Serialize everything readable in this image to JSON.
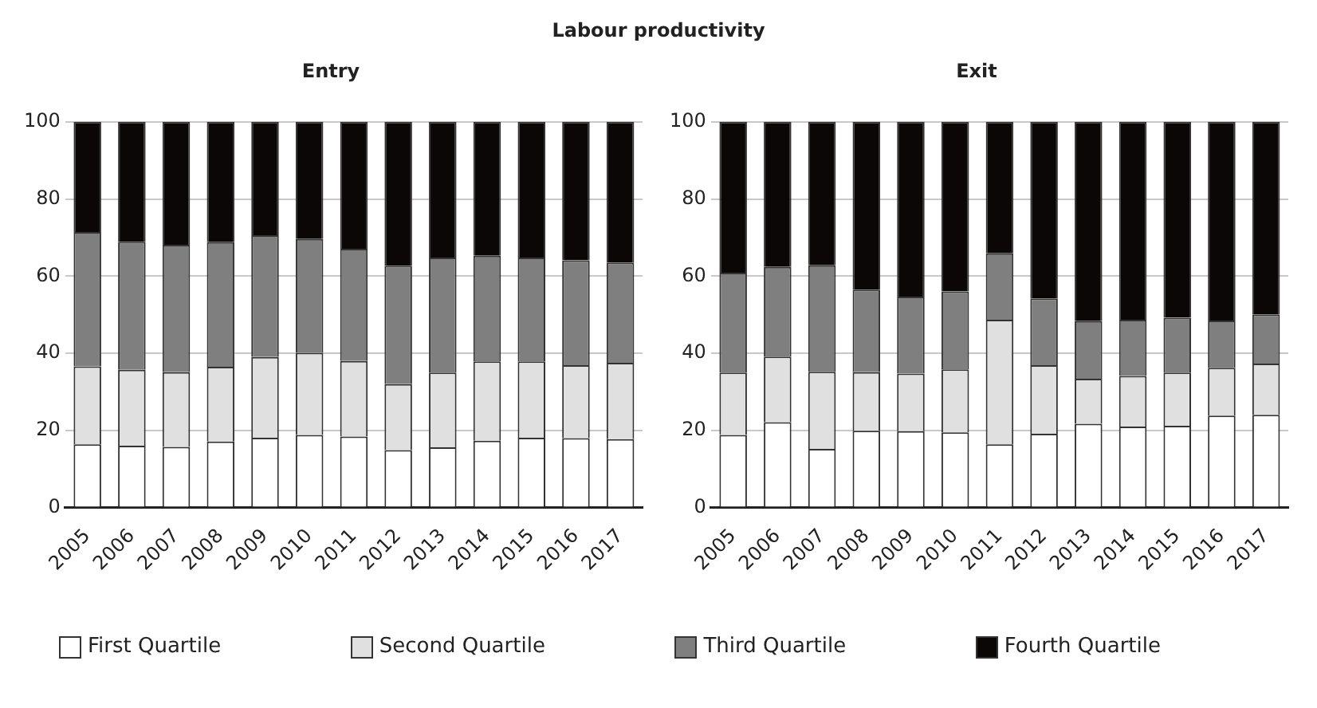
{
  "chart_data": [
    {
      "type": "bar",
      "title": "Entry",
      "annotations": [
        "Labour productivity"
      ],
      "stacked": true,
      "categories": [
        "2005",
        "2006",
        "2007",
        "2008",
        "2009",
        "2010",
        "2011",
        "2012",
        "2013",
        "2014",
        "2015",
        "2016",
        "2017"
      ],
      "series": [
        {
          "name": "First Quartile",
          "color": "#ffffff",
          "values": [
            16.4,
            16,
            15.7,
            17.1,
            18.1,
            18.8,
            18.4,
            14.9,
            15.6,
            17.3,
            18.1,
            18,
            17.7
          ]
        },
        {
          "name": "Second Quartile",
          "color": "#e0e0e0",
          "values": [
            20.2,
            19.7,
            19.4,
            19.4,
            20.9,
            21.3,
            19.6,
            17.1,
            19.4,
            20.6,
            19.8,
            18.9,
            19.8
          ]
        },
        {
          "name": "Third Quartile",
          "color": "#7f7f7f",
          "values": [
            34.8,
            33.2,
            33,
            32.3,
            31.6,
            29.5,
            29.1,
            30.7,
            29.8,
            27.4,
            26.9,
            27.2,
            26
          ]
        },
        {
          "name": "Fourth Quartile",
          "color": "#0a0706",
          "values": [
            28.6,
            31.1,
            31.9,
            31.2,
            29.4,
            30.4,
            32.9,
            37.3,
            35.2,
            34.7,
            35.2,
            35.9,
            36.5
          ]
        }
      ],
      "ylim": [
        0,
        100
      ],
      "yticks": [
        0,
        20,
        40,
        60,
        80,
        100
      ],
      "grid": "y",
      "legend": "bottom"
    },
    {
      "type": "bar",
      "title": "Exit",
      "stacked": true,
      "categories": [
        "2005",
        "2006",
        "2007",
        "2008",
        "2009",
        "2010",
        "2011",
        "2012",
        "2013",
        "2014",
        "2015",
        "2016",
        "2017"
      ],
      "series": [
        {
          "color": "#ffffff",
          "values": [
            18.8,
            22.1,
            15.2,
            19.9,
            19.8,
            19.5,
            16.4,
            19.1,
            21.7,
            21,
            21.2,
            23.8,
            24
          ]
        },
        {
          "color": "#e0e0e0",
          "values": [
            16.2,
            17,
            20,
            15.2,
            14.9,
            16.3,
            32.3,
            17.8,
            11.7,
            13.1,
            13.8,
            12.4,
            13.3
          ]
        },
        {
          "color": "#7f7f7f",
          "values": [
            25.9,
            23.3,
            27.6,
            21.4,
            20,
            20.2,
            17.2,
            17.3,
            14.9,
            14.6,
            14.2,
            12.3,
            12.8
          ]
        },
        {
          "color": "#0a0706",
          "values": [
            39.1,
            37.6,
            37.2,
            43.5,
            45.3,
            44,
            34.1,
            45.8,
            51.7,
            51.3,
            50.8,
            51.5,
            49.9
          ]
        }
      ],
      "ylim": [
        0,
        100
      ],
      "yticks": [
        0,
        20,
        40,
        60,
        80,
        100
      ],
      "grid": "y"
    }
  ]
}
